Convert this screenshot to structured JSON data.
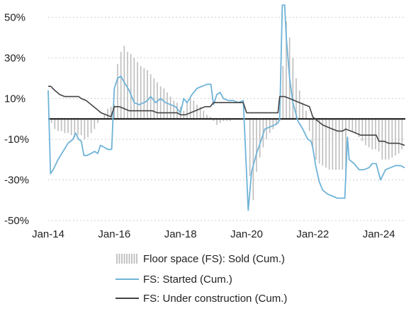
{
  "chart_data": {
    "type": "line",
    "title": "",
    "xlabel": "",
    "ylabel": "",
    "x_range": [
      2014.0,
      2024.8
    ],
    "ylim": [
      -50,
      55
    ],
    "y_ticks": [
      50,
      30,
      10,
      -10,
      -30,
      -50
    ],
    "y_tick_labels": [
      "50%",
      "30%",
      "10%",
      "-10%",
      "-30%",
      "-50%"
    ],
    "x_ticks": [
      2014,
      2016,
      2018,
      2020,
      2022,
      2024
    ],
    "x_tick_labels": [
      "Jan-14",
      "Jan-16",
      "Jan-18",
      "Jan-20",
      "Jan-22",
      "Jan-24"
    ],
    "zero_line": true,
    "grid": "horizontal dashed",
    "legend_position": "bottom",
    "series": [
      {
        "name": "Floor space (FS): Sold (Cum.)",
        "kind": "bar",
        "color": "#bdbdbd",
        "points": [
          [
            2014.1,
            -2
          ],
          [
            2014.2,
            -5
          ],
          [
            2014.3,
            -6
          ],
          [
            2014.4,
            -6
          ],
          [
            2014.5,
            -7
          ],
          [
            2014.6,
            -7
          ],
          [
            2014.7,
            -8
          ],
          [
            2014.8,
            -9
          ],
          [
            2014.9,
            -8
          ],
          [
            2015.0,
            -8
          ],
          [
            2015.1,
            -10
          ],
          [
            2015.2,
            -9
          ],
          [
            2015.3,
            -7
          ],
          [
            2015.4,
            -5
          ],
          [
            2015.5,
            -2
          ],
          [
            2015.6,
            0
          ],
          [
            2015.7,
            2
          ],
          [
            2015.8,
            5
          ],
          [
            2015.9,
            6
          ],
          [
            2016.0,
            7
          ],
          [
            2016.1,
            27
          ],
          [
            2016.2,
            33
          ],
          [
            2016.3,
            36
          ],
          [
            2016.4,
            33
          ],
          [
            2016.5,
            32
          ],
          [
            2016.6,
            30
          ],
          [
            2016.7,
            28
          ],
          [
            2016.8,
            26
          ],
          [
            2016.9,
            25
          ],
          [
            2017.0,
            24
          ],
          [
            2017.1,
            22
          ],
          [
            2017.2,
            20
          ],
          [
            2017.3,
            18
          ],
          [
            2017.4,
            16
          ],
          [
            2017.5,
            15
          ],
          [
            2017.6,
            13
          ],
          [
            2017.7,
            11
          ],
          [
            2017.8,
            9
          ],
          [
            2017.9,
            8
          ],
          [
            2018.0,
            6
          ],
          [
            2018.1,
            4
          ],
          [
            2018.2,
            8
          ],
          [
            2018.3,
            10
          ],
          [
            2018.4,
            9
          ],
          [
            2018.5,
            7
          ],
          [
            2018.6,
            6
          ],
          [
            2018.7,
            4
          ],
          [
            2018.8,
            2
          ],
          [
            2018.9,
            1
          ],
          [
            2019.0,
            -1
          ],
          [
            2019.1,
            -3
          ],
          [
            2019.2,
            -2
          ],
          [
            2019.3,
            -1
          ],
          [
            2019.4,
            -1
          ],
          [
            2019.5,
            -1
          ],
          [
            2019.6,
            0
          ],
          [
            2019.7,
            0
          ],
          [
            2019.8,
            0
          ],
          [
            2019.9,
            0
          ],
          [
            2020.1,
            -28
          ],
          [
            2020.2,
            -40
          ],
          [
            2020.3,
            -26
          ],
          [
            2020.4,
            -19
          ],
          [
            2020.5,
            -14
          ],
          [
            2020.6,
            -10
          ],
          [
            2020.7,
            -7
          ],
          [
            2020.8,
            -5
          ],
          [
            2020.9,
            -3
          ],
          [
            2021.0,
            -1
          ],
          [
            2021.1,
            26
          ],
          [
            2021.2,
            48
          ],
          [
            2021.3,
            40
          ],
          [
            2021.4,
            30
          ],
          [
            2021.5,
            20
          ],
          [
            2021.6,
            14
          ],
          [
            2021.7,
            8
          ],
          [
            2021.8,
            4
          ],
          [
            2021.9,
            -6
          ],
          [
            2022.0,
            -14
          ],
          [
            2022.1,
            -20
          ],
          [
            2022.2,
            -22
          ],
          [
            2022.3,
            -23
          ],
          [
            2022.4,
            -24
          ],
          [
            2022.5,
            -25
          ],
          [
            2022.6,
            -25
          ],
          [
            2022.7,
            -25
          ],
          [
            2022.8,
            -25
          ],
          [
            2022.9,
            -25
          ],
          [
            2023.0,
            -26
          ],
          [
            2023.1,
            -5
          ],
          [
            2023.2,
            -6
          ],
          [
            2023.3,
            -7
          ],
          [
            2023.4,
            -9
          ],
          [
            2023.5,
            -11
          ],
          [
            2023.6,
            -13
          ],
          [
            2023.7,
            -14
          ],
          [
            2023.8,
            -15
          ],
          [
            2023.9,
            -15
          ],
          [
            2024.0,
            -16
          ],
          [
            2024.1,
            -20
          ],
          [
            2024.2,
            -20
          ],
          [
            2024.3,
            -20
          ],
          [
            2024.4,
            -19
          ],
          [
            2024.5,
            -18
          ],
          [
            2024.6,
            -17
          ],
          [
            2024.7,
            -15
          ]
        ]
      },
      {
        "name": "FS: Started (Cum.)",
        "kind": "line",
        "color": "#6fb3d8",
        "points": [
          [
            2014.0,
            14
          ],
          [
            2014.07,
            -27
          ],
          [
            2014.15,
            -25
          ],
          [
            2014.3,
            -20
          ],
          [
            2014.45,
            -16
          ],
          [
            2014.6,
            -12
          ],
          [
            2014.75,
            -10
          ],
          [
            2014.83,
            -7
          ],
          [
            2014.92,
            -10
          ],
          [
            2015.0,
            -11
          ],
          [
            2015.08,
            -18
          ],
          [
            2015.17,
            -18
          ],
          [
            2015.3,
            -17
          ],
          [
            2015.4,
            -16
          ],
          [
            2015.5,
            -17
          ],
          [
            2015.58,
            -13
          ],
          [
            2015.7,
            -14
          ],
          [
            2015.8,
            -15
          ],
          [
            2015.92,
            -15
          ],
          [
            2016.0,
            15
          ],
          [
            2016.1,
            20
          ],
          [
            2016.2,
            21
          ],
          [
            2016.3,
            18
          ],
          [
            2016.45,
            14
          ],
          [
            2016.6,
            8
          ],
          [
            2016.75,
            7
          ],
          [
            2016.9,
            8
          ],
          [
            2017.0,
            9
          ],
          [
            2017.1,
            11
          ],
          [
            2017.25,
            8
          ],
          [
            2017.4,
            10
          ],
          [
            2017.55,
            8
          ],
          [
            2017.7,
            7
          ],
          [
            2017.85,
            6
          ],
          [
            2018.0,
            3
          ],
          [
            2018.1,
            10
          ],
          [
            2018.2,
            8
          ],
          [
            2018.35,
            12
          ],
          [
            2018.5,
            15
          ],
          [
            2018.65,
            16
          ],
          [
            2018.8,
            17
          ],
          [
            2018.92,
            17
          ],
          [
            2019.0,
            7
          ],
          [
            2019.1,
            12
          ],
          [
            2019.2,
            13
          ],
          [
            2019.3,
            10
          ],
          [
            2019.45,
            9
          ],
          [
            2019.6,
            9
          ],
          [
            2019.75,
            8
          ],
          [
            2019.9,
            9
          ],
          [
            2020.05,
            -45
          ],
          [
            2020.15,
            -26
          ],
          [
            2020.3,
            -17
          ],
          [
            2020.45,
            -10
          ],
          [
            2020.55,
            -5
          ],
          [
            2020.7,
            -4
          ],
          [
            2020.85,
            -3
          ],
          [
            2020.95,
            -2
          ],
          [
            2021.0,
            0
          ],
          [
            2021.08,
            56
          ],
          [
            2021.15,
            56
          ],
          [
            2021.2,
            40
          ],
          [
            2021.3,
            20
          ],
          [
            2021.4,
            8
          ],
          [
            2021.55,
            -1
          ],
          [
            2021.7,
            -5
          ],
          [
            2021.85,
            -10
          ],
          [
            2021.95,
            -11
          ],
          [
            2022.0,
            -14
          ],
          [
            2022.1,
            -24
          ],
          [
            2022.2,
            -31
          ],
          [
            2022.3,
            -35
          ],
          [
            2022.45,
            -37
          ],
          [
            2022.6,
            -38
          ],
          [
            2022.75,
            -39
          ],
          [
            2022.9,
            -39
          ],
          [
            2022.97,
            -39
          ],
          [
            2023.05,
            -9
          ],
          [
            2023.1,
            -20
          ],
          [
            2023.25,
            -22
          ],
          [
            2023.4,
            -25
          ],
          [
            2023.55,
            -25
          ],
          [
            2023.7,
            -24
          ],
          [
            2023.8,
            -22
          ],
          [
            2023.92,
            -22
          ],
          [
            2024.05,
            -30
          ],
          [
            2024.2,
            -25
          ],
          [
            2024.35,
            -24
          ],
          [
            2024.5,
            -23
          ],
          [
            2024.65,
            -23
          ],
          [
            2024.78,
            -24
          ]
        ]
      },
      {
        "name": "FS: Under construction (Cum.)",
        "kind": "line",
        "color": "#444444",
        "points": [
          [
            2014.0,
            16
          ],
          [
            2014.08,
            16
          ],
          [
            2014.2,
            14
          ],
          [
            2014.35,
            12
          ],
          [
            2014.5,
            11
          ],
          [
            2014.65,
            11
          ],
          [
            2014.8,
            11
          ],
          [
            2014.92,
            11
          ],
          [
            2015.0,
            10
          ],
          [
            2015.15,
            9
          ],
          [
            2015.3,
            7
          ],
          [
            2015.45,
            5
          ],
          [
            2015.6,
            3
          ],
          [
            2015.75,
            2
          ],
          [
            2015.9,
            1
          ],
          [
            2016.0,
            6
          ],
          [
            2016.15,
            6
          ],
          [
            2016.3,
            5
          ],
          [
            2016.45,
            4
          ],
          [
            2016.6,
            4
          ],
          [
            2016.75,
            4
          ],
          [
            2016.9,
            4
          ],
          [
            2017.0,
            4
          ],
          [
            2017.15,
            4
          ],
          [
            2017.3,
            3
          ],
          [
            2017.45,
            3
          ],
          [
            2017.6,
            3
          ],
          [
            2017.75,
            3
          ],
          [
            2017.9,
            3
          ],
          [
            2018.0,
            2
          ],
          [
            2018.15,
            2
          ],
          [
            2018.3,
            3
          ],
          [
            2018.45,
            4
          ],
          [
            2018.6,
            5
          ],
          [
            2018.75,
            6
          ],
          [
            2018.9,
            6
          ],
          [
            2019.0,
            8
          ],
          [
            2019.15,
            8
          ],
          [
            2019.3,
            8
          ],
          [
            2019.45,
            8
          ],
          [
            2019.6,
            8
          ],
          [
            2019.75,
            8
          ],
          [
            2019.9,
            8
          ],
          [
            2020.0,
            3
          ],
          [
            2020.15,
            3
          ],
          [
            2020.3,
            3
          ],
          [
            2020.45,
            3
          ],
          [
            2020.6,
            3
          ],
          [
            2020.75,
            3
          ],
          [
            2020.95,
            3
          ],
          [
            2021.0,
            11
          ],
          [
            2021.15,
            11
          ],
          [
            2021.3,
            10
          ],
          [
            2021.45,
            9
          ],
          [
            2021.6,
            8
          ],
          [
            2021.75,
            7
          ],
          [
            2021.9,
            6
          ],
          [
            2022.0,
            1
          ],
          [
            2022.15,
            -1
          ],
          [
            2022.3,
            -3
          ],
          [
            2022.45,
            -4
          ],
          [
            2022.6,
            -5
          ],
          [
            2022.75,
            -6
          ],
          [
            2022.9,
            -6
          ],
          [
            2023.0,
            -5
          ],
          [
            2023.15,
            -6
          ],
          [
            2023.3,
            -7
          ],
          [
            2023.45,
            -8
          ],
          [
            2023.6,
            -8
          ],
          [
            2023.75,
            -8
          ],
          [
            2023.92,
            -8
          ],
          [
            2024.0,
            -11
          ],
          [
            2024.15,
            -11
          ],
          [
            2024.3,
            -12
          ],
          [
            2024.45,
            -12
          ],
          [
            2024.6,
            -12
          ],
          [
            2024.78,
            -13
          ]
        ]
      }
    ]
  }
}
